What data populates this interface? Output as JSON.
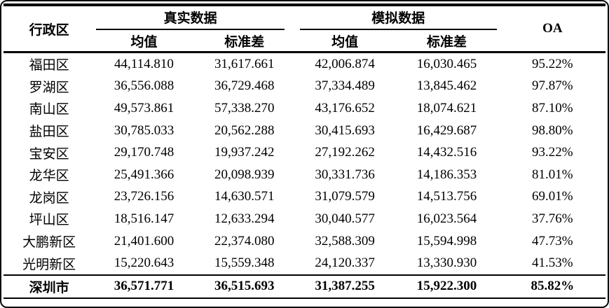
{
  "page": {
    "background": "#ffffff",
    "frame_border_color": "#0a0a0a",
    "text_color": "#000000",
    "rule_color": "#000000"
  },
  "table": {
    "headers": {
      "district": "行政区",
      "real_group": "真实数据",
      "sim_group": "模拟数据",
      "mean": "均值",
      "std": "标准差",
      "oa": "OA"
    },
    "rows": [
      {
        "district": "福田区",
        "real_mean": "44,114.810",
        "real_std": "31,617.661",
        "sim_mean": "42,006.874",
        "sim_std": "16,030.465",
        "oa": "95.22%"
      },
      {
        "district": "罗湖区",
        "real_mean": "36,556.088",
        "real_std": "36,729.468",
        "sim_mean": "37,334.489",
        "sim_std": "13,845.462",
        "oa": "97.87%"
      },
      {
        "district": "南山区",
        "real_mean": "49,573.861",
        "real_std": "57,338.270",
        "sim_mean": "43,176.652",
        "sim_std": "18,074.621",
        "oa": "87.10%"
      },
      {
        "district": "盐田区",
        "real_mean": "30,785.033",
        "real_std": "20,562.288",
        "sim_mean": "30,415.693",
        "sim_std": "16,429.687",
        "oa": "98.80%"
      },
      {
        "district": "宝安区",
        "real_mean": "29,170.748",
        "real_std": "19,937.242",
        "sim_mean": "27,192.262",
        "sim_std": "14,432.516",
        "oa": "93.22%"
      },
      {
        "district": "龙华区",
        "real_mean": "25,491.366",
        "real_std": "20,098.939",
        "sim_mean": "30,331.736",
        "sim_std": "14,186.353",
        "oa": "81.01%"
      },
      {
        "district": "龙岗区",
        "real_mean": "23,726.156",
        "real_std": "14,630.571",
        "sim_mean": "31,079.579",
        "sim_std": "14,513.756",
        "oa": "69.01%"
      },
      {
        "district": "坪山区",
        "real_mean": "18,516.147",
        "real_std": "12,633.294",
        "sim_mean": "30,040.577",
        "sim_std": "16,023.564",
        "oa": "37.76%"
      },
      {
        "district": "大鹏新区",
        "real_mean": "21,401.600",
        "real_std": "22,374.080",
        "sim_mean": "32,588.309",
        "sim_std": "15,594.998",
        "oa": "47.73%"
      },
      {
        "district": "光明新区",
        "real_mean": "15,220.643",
        "real_std": "15,559.348",
        "sim_mean": "24,120.337",
        "sim_std": "13,330.930",
        "oa": "41.53%"
      }
    ],
    "total_row": {
      "district": "深圳市",
      "real_mean": "36,571.771",
      "real_std": "36,515.693",
      "sim_mean": "31,387.255",
      "sim_std": "15,922.300",
      "oa": "85.82%"
    }
  }
}
